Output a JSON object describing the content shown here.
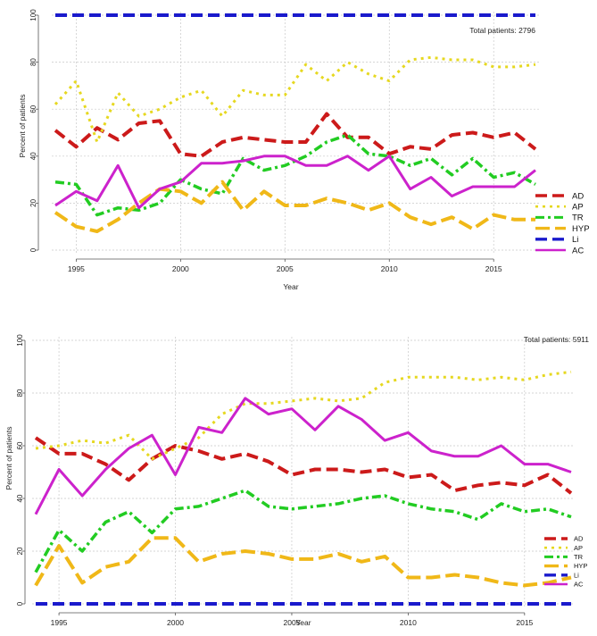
{
  "chart_data": [
    {
      "type": "line",
      "title": "",
      "annotation": "Total patients: 2796",
      "xlabel": "Year",
      "ylabel": "Percent of patients",
      "xlim": [
        1994,
        2017
      ],
      "ylim": [
        0,
        100
      ],
      "x_ticks": [
        "1995",
        "2000",
        "2005",
        "2010",
        "2015"
      ],
      "x_tick_values": [
        1995,
        2000,
        2005,
        2010,
        2015
      ],
      "y_ticks": [
        "0",
        "20",
        "40",
        "60",
        "80",
        "100"
      ],
      "y_tick_values": [
        0,
        20,
        40,
        60,
        80,
        100
      ],
      "grid": true,
      "legend_position": "right",
      "x": [
        1994,
        1995,
        1996,
        1997,
        1998,
        1999,
        2000,
        2001,
        2002,
        2003,
        2004,
        2005,
        2006,
        2007,
        2008,
        2009,
        2010,
        2011,
        2012,
        2013,
        2014,
        2015,
        2016,
        2017
      ],
      "series": [
        {
          "name": "AD",
          "color": "#cc1a1a",
          "dash": "dash",
          "values": [
            51,
            44,
            52,
            47,
            54,
            55,
            41,
            40,
            46,
            48,
            47,
            46,
            46,
            58,
            48,
            48,
            41,
            44,
            43,
            49,
            50,
            48,
            50,
            43
          ]
        },
        {
          "name": "AP",
          "color": "#e6d820",
          "dash": "dot",
          "values": [
            62,
            72,
            46,
            67,
            57,
            60,
            65,
            68,
            57,
            68,
            66,
            66,
            79,
            72,
            80,
            75,
            72,
            81,
            82,
            81,
            81,
            78,
            78,
            79
          ]
        },
        {
          "name": "TR",
          "color": "#22cc22",
          "dash": "dashdot",
          "values": [
            29,
            28,
            15,
            18,
            17,
            20,
            30,
            26,
            24,
            39,
            34,
            36,
            40,
            46,
            49,
            41,
            40,
            36,
            39,
            32,
            39,
            31,
            33,
            28
          ]
        },
        {
          "name": "HYP",
          "color": "#f0b818",
          "dash": "longdash",
          "values": [
            16,
            10,
            8,
            13,
            20,
            26,
            25,
            20,
            29,
            17,
            25,
            19,
            19,
            22,
            20,
            17,
            20,
            14,
            11,
            14,
            9,
            15,
            13,
            13
          ]
        },
        {
          "name": "Li",
          "color": "#1a1acc",
          "dash": "dash",
          "values": [
            100,
            100,
            100,
            100,
            100,
            100,
            100,
            100,
            100,
            100,
            100,
            100,
            100,
            100,
            100,
            100,
            100,
            100,
            100,
            100,
            100,
            100,
            100,
            100
          ]
        },
        {
          "name": "AC",
          "color": "#cc22cc",
          "dash": "solid",
          "values": [
            19,
            25,
            21,
            36,
            18,
            26,
            29,
            37,
            37,
            38,
            40,
            40,
            36,
            36,
            40,
            34,
            40,
            26,
            31,
            23,
            27,
            27,
            27,
            34
          ]
        }
      ]
    },
    {
      "type": "line",
      "title": "",
      "annotation": "Total patients: 5911",
      "xlabel": "Year",
      "ylabel": "Percent of patients",
      "xlim": [
        1994,
        2017
      ],
      "ylim": [
        0,
        100
      ],
      "x_ticks": [
        "1995",
        "2000",
        "2005",
        "2010",
        "2015"
      ],
      "x_tick_values": [
        1995,
        2000,
        2005,
        2010,
        2015
      ],
      "y_ticks": [
        "0",
        "20",
        "40",
        "60",
        "80",
        "100"
      ],
      "y_tick_values": [
        0,
        20,
        40,
        60,
        80,
        100
      ],
      "grid": true,
      "legend_position": "bottom-right",
      "x": [
        1994,
        1995,
        1996,
        1997,
        1998,
        1999,
        2000,
        2001,
        2002,
        2003,
        2004,
        2005,
        2006,
        2007,
        2008,
        2009,
        2010,
        2011,
        2012,
        2013,
        2014,
        2015,
        2016,
        2017
      ],
      "series": [
        {
          "name": "AD",
          "color": "#cc1a1a",
          "dash": "dash",
          "values": [
            63,
            57,
            57,
            53,
            47,
            55,
            60,
            58,
            55,
            57,
            54,
            49,
            51,
            51,
            50,
            51,
            48,
            49,
            43,
            45,
            46,
            45,
            49,
            42
          ]
        },
        {
          "name": "AP",
          "color": "#e6d820",
          "dash": "dot",
          "values": [
            59,
            60,
            62,
            61,
            64,
            55,
            59,
            63,
            72,
            76,
            76,
            77,
            78,
            77,
            78,
            84,
            86,
            86,
            86,
            85,
            86,
            85,
            87,
            88
          ]
        },
        {
          "name": "TR",
          "color": "#22cc22",
          "dash": "dashdot",
          "values": [
            12,
            28,
            20,
            31,
            35,
            27,
            36,
            37,
            40,
            43,
            37,
            36,
            37,
            38,
            40,
            41,
            38,
            36,
            35,
            32,
            38,
            35,
            36,
            33
          ]
        },
        {
          "name": "HYP",
          "color": "#f0b818",
          "dash": "longdash",
          "values": [
            7,
            22,
            8,
            14,
            16,
            25,
            25,
            16,
            19,
            20,
            19,
            17,
            17,
            19,
            16,
            18,
            10,
            10,
            11,
            10,
            8,
            7,
            8,
            10
          ]
        },
        {
          "name": "Li",
          "color": "#1a1acc",
          "dash": "dash",
          "values": [
            0,
            0,
            0,
            0,
            0,
            0,
            0,
            0,
            0,
            0,
            0,
            0,
            0,
            0,
            0,
            0,
            0,
            0,
            0,
            0,
            0,
            0,
            0,
            0
          ]
        },
        {
          "name": "AC",
          "color": "#cc22cc",
          "dash": "solid",
          "values": [
            34,
            51,
            41,
            51,
            59,
            64,
            49,
            67,
            65,
            78,
            72,
            74,
            66,
            75,
            70,
            62,
            65,
            58,
            56,
            56,
            60,
            53,
            53,
            50
          ]
        }
      ]
    }
  ]
}
